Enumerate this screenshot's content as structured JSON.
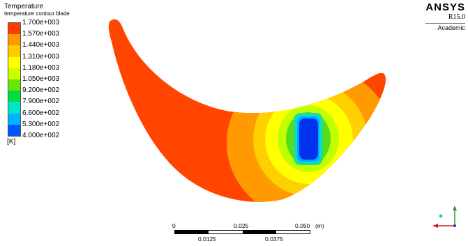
{
  "legend": {
    "title": "Temperature",
    "subtitle": "temperature contour blade",
    "unit": "[K]",
    "levels": [
      {
        "label": "1.700e+003",
        "color": "#ff3c00"
      },
      {
        "label": "1.570e+003",
        "color": "#ff9900"
      },
      {
        "label": "1.440e+003",
        "color": "#ffcc00"
      },
      {
        "label": "1.310e+003",
        "color": "#ffff00"
      },
      {
        "label": "1.180e+003",
        "color": "#ccff00"
      },
      {
        "label": "1.050e+003",
        "color": "#66e600"
      },
      {
        "label": "9.200e+002",
        "color": "#00dd44"
      },
      {
        "label": "7.900e+002",
        "color": "#00e6cc"
      },
      {
        "label": "6.600e+002",
        "color": "#00b3ff"
      },
      {
        "label": "5.300e+002",
        "color": "#0055ff"
      },
      {
        "label": "4.000e+002",
        "color": "#0022ee"
      }
    ]
  },
  "brand": {
    "name": "ANSYS",
    "version": "R15.0",
    "edition": "Academic"
  },
  "scale": {
    "top_labels": [
      "0",
      "0.025",
      "0.050",
      "(m)"
    ],
    "bottom_labels": [
      "0.0125",
      "0.0375"
    ]
  },
  "colors": {
    "hot": "#ff4500",
    "band2": "#ff9a00",
    "band3": "#ffd000",
    "band4": "#ffff00",
    "band5": "#bfff00",
    "band6": "#55dd22",
    "band7": "#22dd88",
    "band8": "#00ddee",
    "band9": "#00aaff",
    "core": "#0033ee"
  },
  "icons": {
    "triad": "coordinate-axes-triad-icon"
  }
}
